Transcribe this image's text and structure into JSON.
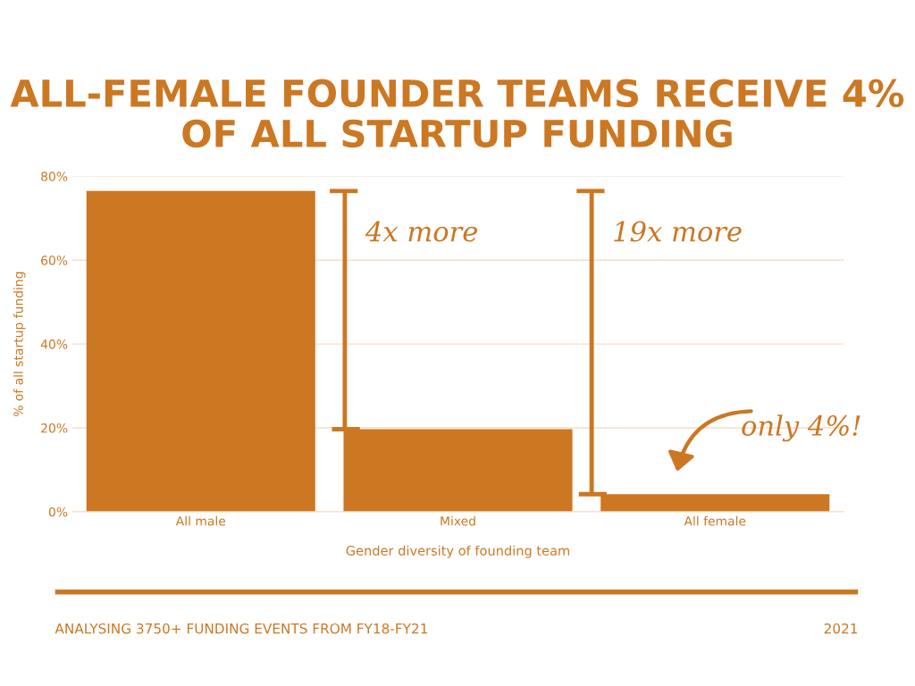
{
  "chart_data": {
    "type": "bar",
    "title": "ALL-FEMALE FOUNDER TEAMS RECEIVE 4%\nOF ALL STARTUP FUNDING",
    "xlabel": "Gender diversity of founding team",
    "ylabel": "% of all startup funding",
    "categories": [
      "All male",
      "Mixed",
      "All female"
    ],
    "values": [
      76.5,
      19.7,
      4.2
    ],
    "color": "#cc7722",
    "ylim": [
      0,
      80
    ],
    "yticks": [
      {
        "value": 0,
        "label": "0%"
      },
      {
        "value": 20,
        "label": "20%"
      },
      {
        "value": 40,
        "label": "40%"
      },
      {
        "value": 60,
        "label": "60%"
      },
      {
        "value": 80,
        "label": "80%"
      }
    ],
    "grid": "y",
    "annotations": [
      "4x more",
      "19x more",
      "only 4%!",
      "ANALYSING 3750+ FUNDING EVENTS FROM FY18-FY21",
      "2021"
    ]
  }
}
